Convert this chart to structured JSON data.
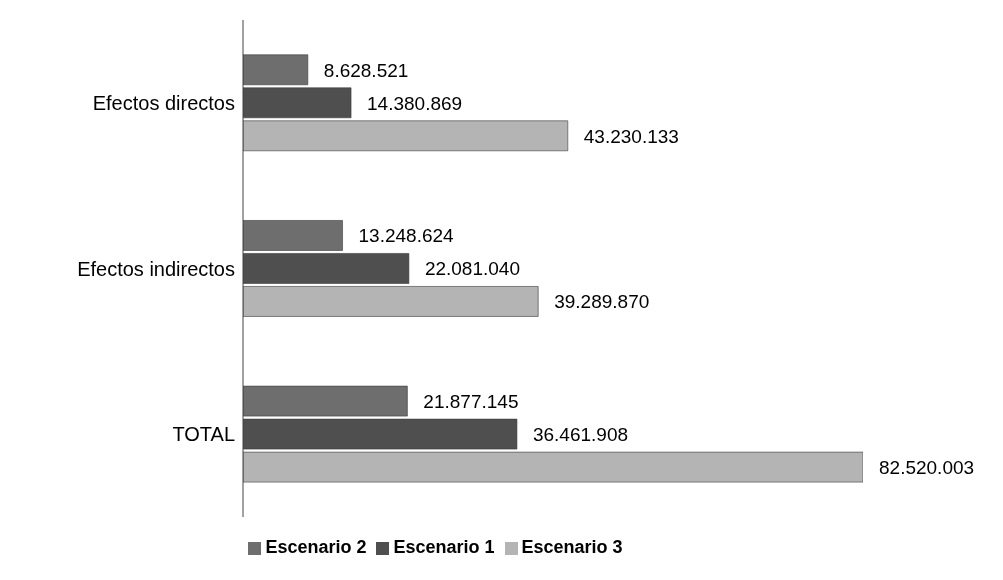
{
  "chart_data": {
    "type": "bar",
    "orientation": "horizontal",
    "categories": [
      "Efectos directos",
      "Efectos indirectos",
      "TOTAL"
    ],
    "series": [
      {
        "name": "Escenario 2",
        "color": "#6e6e6e",
        "values": [
          8628521,
          13248624,
          21877145
        ],
        "value_labels": [
          "8.628.521",
          "13.248.624",
          "21.877.145"
        ]
      },
      {
        "name": "Escenario 1",
        "color": "#4f4f4f",
        "values": [
          14380869,
          22081040,
          36461908
        ],
        "value_labels": [
          "14.380.869",
          "22.081.040",
          "36.461.908"
        ]
      },
      {
        "name": "Escenario 3",
        "color": "#b4b4b4",
        "values": [
          43230133,
          39289870,
          82520003
        ],
        "value_labels": [
          "43.230.133",
          "39.289.870",
          "82.520.003"
        ]
      }
    ],
    "tick_labels": "y",
    "legend": "bottom"
  }
}
